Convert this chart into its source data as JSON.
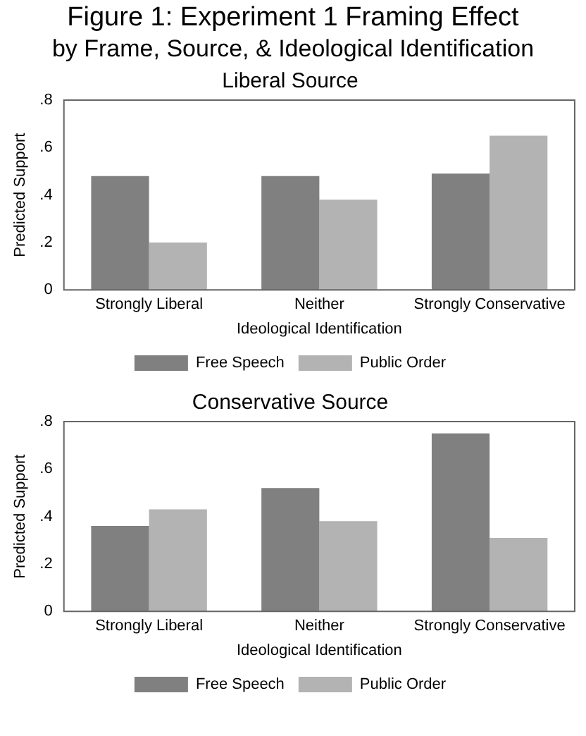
{
  "chart_data": [
    {
      "type": "other",
      "title": "Figure 1: Experiment 1 Framing Effect",
      "subtitle": "by Frame, Source, & Ideological Identification"
    },
    {
      "type": "bar",
      "title": "Liberal Source",
      "ylabel": "Predicted Support",
      "xlabel": "Ideological Identification",
      "categories": [
        "Strongly Liberal",
        "Neither",
        "Strongly Conservative"
      ],
      "series": [
        {
          "name": "Free Speech",
          "color": "#808080",
          "values": [
            0.48,
            0.48,
            0.49
          ]
        },
        {
          "name": "Public Order",
          "color": "#b3b3b3",
          "values": [
            0.2,
            0.38,
            0.65
          ]
        }
      ],
      "ylim": [
        0,
        0.8
      ],
      "yticks": [
        0,
        {
          "value": 0.2,
          "label": ".2"
        },
        {
          "value": 0.4,
          "label": ".4"
        },
        {
          "value": 0.6,
          "label": ".6"
        },
        {
          "value": 0.8,
          "label": ".8"
        }
      ],
      "grid": false,
      "legend": "bottom"
    },
    {
      "type": "bar",
      "title": "Conservative Source",
      "ylabel": "Predicted Support",
      "xlabel": "Ideological Identification",
      "categories": [
        "Strongly Liberal",
        "Neither",
        "Strongly Conservative"
      ],
      "series": [
        {
          "name": "Free Speech",
          "color": "#808080",
          "values": [
            0.36,
            0.52,
            0.75
          ]
        },
        {
          "name": "Public Order",
          "color": "#b3b3b3",
          "values": [
            0.43,
            0.38,
            0.31
          ]
        }
      ],
      "ylim": [
        0,
        0.8
      ],
      "yticks": [
        0,
        {
          "value": 0.2,
          "label": ".2"
        },
        {
          "value": 0.4,
          "label": ".4"
        },
        {
          "value": 0.6,
          "label": ".6"
        },
        {
          "value": 0.8,
          "label": ".8"
        }
      ],
      "grid": false,
      "legend": "bottom"
    }
  ]
}
